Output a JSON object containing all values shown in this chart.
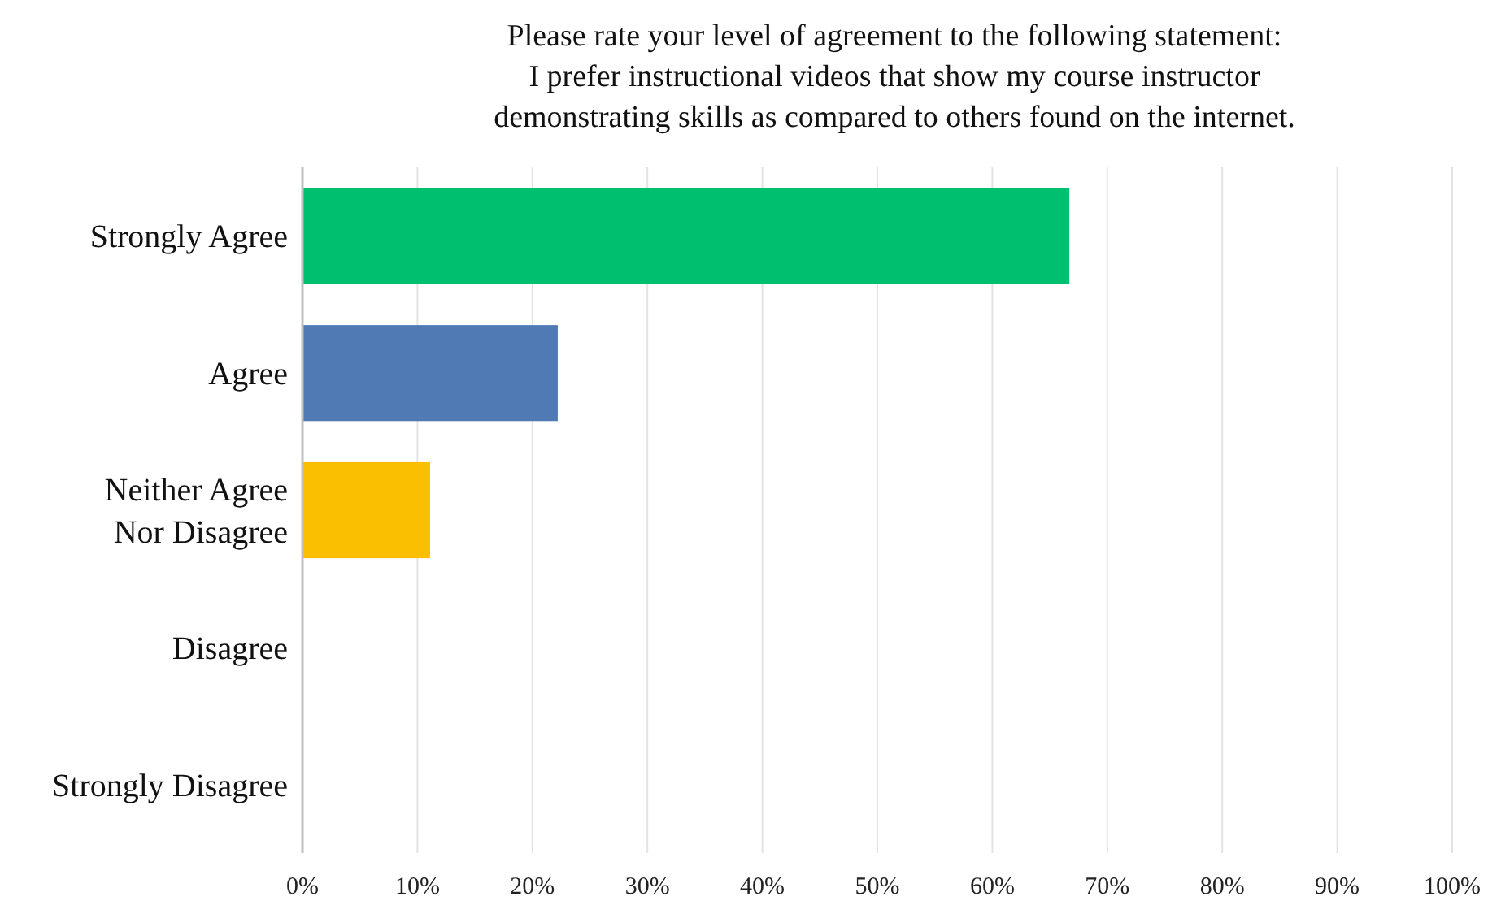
{
  "chart_data": {
    "type": "bar",
    "orientation": "horizontal",
    "title": "Please rate your level of agreement to the following statement:\nI prefer instructional videos that show my course instructor\ndemonstrating skills as compared to others found on the internet.",
    "categories": [
      "Strongly Agree",
      "Agree",
      "Neither Agree\nNor Disagree",
      "Disagree",
      "Strongly Disagree"
    ],
    "values": [
      66.7,
      22.2,
      11.1,
      0,
      0
    ],
    "colors": [
      "#00bf6f",
      "#4f7ab3",
      "#f9bf00",
      "#a5a5a5",
      "#5b9bd5"
    ],
    "xlim": [
      0,
      100
    ],
    "xticks": [
      {
        "value": 0,
        "label": "0%"
      },
      {
        "value": 10,
        "label": "10%"
      },
      {
        "value": 20,
        "label": "20%"
      },
      {
        "value": 30,
        "label": "30%"
      },
      {
        "value": 40,
        "label": "40%"
      },
      {
        "value": 50,
        "label": "50%"
      },
      {
        "value": 60,
        "label": "60%"
      },
      {
        "value": 70,
        "label": "70%"
      },
      {
        "value": 80,
        "label": "80%"
      },
      {
        "value": 90,
        "label": "90%"
      },
      {
        "value": 100,
        "label": "100%"
      }
    ],
    "grid": "x"
  }
}
